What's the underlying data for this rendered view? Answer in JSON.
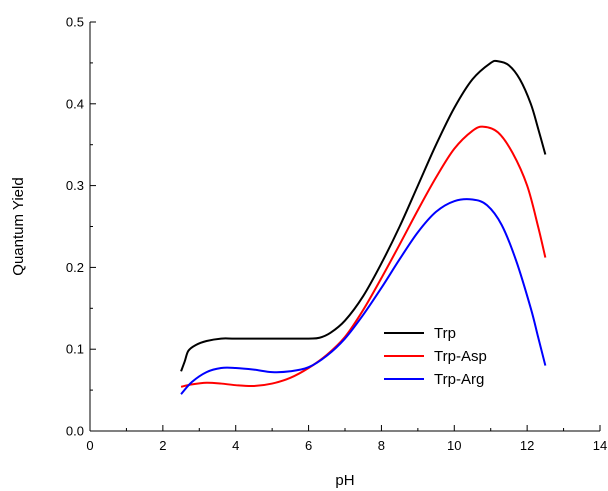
{
  "chart_data": {
    "type": "line",
    "xlabel": "pH",
    "ylabel": "Quantum Yield",
    "xlim": [
      0,
      14
    ],
    "ylim": [
      0.0,
      0.5
    ],
    "x_ticks": [
      "0",
      "2",
      "4",
      "6",
      "8",
      "10",
      "12",
      "14"
    ],
    "y_ticks": [
      "0.0",
      "0.1",
      "0.2",
      "0.3",
      "0.4",
      "0.5"
    ],
    "grid": false,
    "legend_position": "center-right",
    "series": [
      {
        "name": "Trp",
        "color": "#000000",
        "points": [
          [
            2.5,
            0.073
          ],
          [
            2.6,
            0.085
          ],
          [
            2.7,
            0.098
          ],
          [
            2.9,
            0.105
          ],
          [
            3.2,
            0.11
          ],
          [
            3.6,
            0.113
          ],
          [
            4.0,
            0.113
          ],
          [
            5.0,
            0.113
          ],
          [
            6.0,
            0.113
          ],
          [
            6.3,
            0.114
          ],
          [
            6.6,
            0.12
          ],
          [
            7.0,
            0.135
          ],
          [
            7.5,
            0.165
          ],
          [
            8.0,
            0.205
          ],
          [
            8.5,
            0.25
          ],
          [
            9.0,
            0.3
          ],
          [
            9.5,
            0.35
          ],
          [
            10.0,
            0.395
          ],
          [
            10.5,
            0.43
          ],
          [
            11.0,
            0.45
          ],
          [
            11.2,
            0.452
          ],
          [
            11.5,
            0.447
          ],
          [
            11.8,
            0.43
          ],
          [
            12.1,
            0.4
          ],
          [
            12.3,
            0.37
          ],
          [
            12.5,
            0.338
          ]
        ]
      },
      {
        "name": "Trp-Asp",
        "color": "#ff0000",
        "points": [
          [
            2.5,
            0.054
          ],
          [
            2.8,
            0.057
          ],
          [
            3.2,
            0.059
          ],
          [
            3.6,
            0.058
          ],
          [
            4.0,
            0.056
          ],
          [
            4.5,
            0.055
          ],
          [
            5.0,
            0.058
          ],
          [
            5.5,
            0.065
          ],
          [
            6.0,
            0.077
          ],
          [
            6.5,
            0.093
          ],
          [
            7.0,
            0.115
          ],
          [
            7.5,
            0.148
          ],
          [
            8.0,
            0.187
          ],
          [
            8.5,
            0.228
          ],
          [
            9.0,
            0.27
          ],
          [
            9.5,
            0.31
          ],
          [
            10.0,
            0.345
          ],
          [
            10.5,
            0.367
          ],
          [
            10.8,
            0.372
          ],
          [
            11.2,
            0.365
          ],
          [
            11.6,
            0.34
          ],
          [
            12.0,
            0.3
          ],
          [
            12.3,
            0.25
          ],
          [
            12.5,
            0.212
          ]
        ]
      },
      {
        "name": "Trp-Arg",
        "color": "#0000ff",
        "points": [
          [
            2.5,
            0.045
          ],
          [
            2.8,
            0.06
          ],
          [
            3.2,
            0.072
          ],
          [
            3.6,
            0.077
          ],
          [
            4.0,
            0.077
          ],
          [
            4.5,
            0.075
          ],
          [
            5.0,
            0.072
          ],
          [
            5.5,
            0.073
          ],
          [
            6.0,
            0.078
          ],
          [
            6.5,
            0.092
          ],
          [
            7.0,
            0.113
          ],
          [
            7.5,
            0.142
          ],
          [
            8.0,
            0.175
          ],
          [
            8.5,
            0.21
          ],
          [
            9.0,
            0.243
          ],
          [
            9.5,
            0.268
          ],
          [
            10.0,
            0.281
          ],
          [
            10.5,
            0.283
          ],
          [
            10.9,
            0.276
          ],
          [
            11.3,
            0.252
          ],
          [
            11.7,
            0.208
          ],
          [
            12.1,
            0.15
          ],
          [
            12.3,
            0.115
          ],
          [
            12.5,
            0.08
          ]
        ]
      }
    ]
  }
}
